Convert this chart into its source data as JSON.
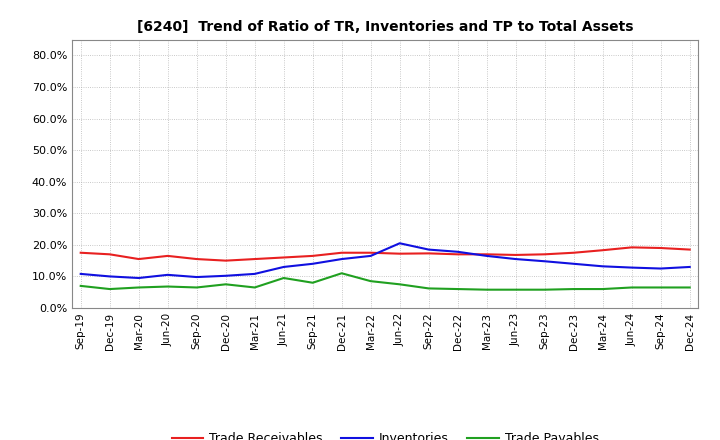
{
  "title": "[6240]  Trend of Ratio of TR, Inventories and TP to Total Assets",
  "labels": [
    "Sep-19",
    "Dec-19",
    "Mar-20",
    "Jun-20",
    "Sep-20",
    "Dec-20",
    "Mar-21",
    "Jun-21",
    "Sep-21",
    "Dec-21",
    "Mar-22",
    "Jun-22",
    "Sep-22",
    "Dec-22",
    "Mar-23",
    "Jun-23",
    "Sep-23",
    "Dec-23",
    "Mar-24",
    "Jun-24",
    "Sep-24",
    "Dec-24"
  ],
  "trade_receivables": [
    0.175,
    0.17,
    0.155,
    0.165,
    0.155,
    0.15,
    0.155,
    0.16,
    0.165,
    0.175,
    0.175,
    0.172,
    0.173,
    0.17,
    0.17,
    0.168,
    0.17,
    0.175,
    0.183,
    0.192,
    0.19,
    0.185
  ],
  "inventories": [
    0.108,
    0.1,
    0.095,
    0.105,
    0.098,
    0.102,
    0.108,
    0.13,
    0.14,
    0.155,
    0.165,
    0.205,
    0.185,
    0.178,
    0.165,
    0.155,
    0.148,
    0.14,
    0.132,
    0.128,
    0.125,
    0.13
  ],
  "trade_payables": [
    0.07,
    0.06,
    0.065,
    0.068,
    0.065,
    0.075,
    0.065,
    0.095,
    0.08,
    0.11,
    0.085,
    0.075,
    0.062,
    0.06,
    0.058,
    0.058,
    0.058,
    0.06,
    0.06,
    0.065,
    0.065,
    0.065
  ],
  "ylim": [
    0.0,
    0.85
  ],
  "yticks": [
    0.0,
    0.1,
    0.2,
    0.3,
    0.4,
    0.5,
    0.6,
    0.7,
    0.8
  ],
  "color_tr": "#e82020",
  "color_inv": "#1010e0",
  "color_tp": "#20a020",
  "legend_labels": [
    "Trade Receivables",
    "Inventories",
    "Trade Payables"
  ],
  "background_color": "#ffffff",
  "grid_color": "#999999"
}
